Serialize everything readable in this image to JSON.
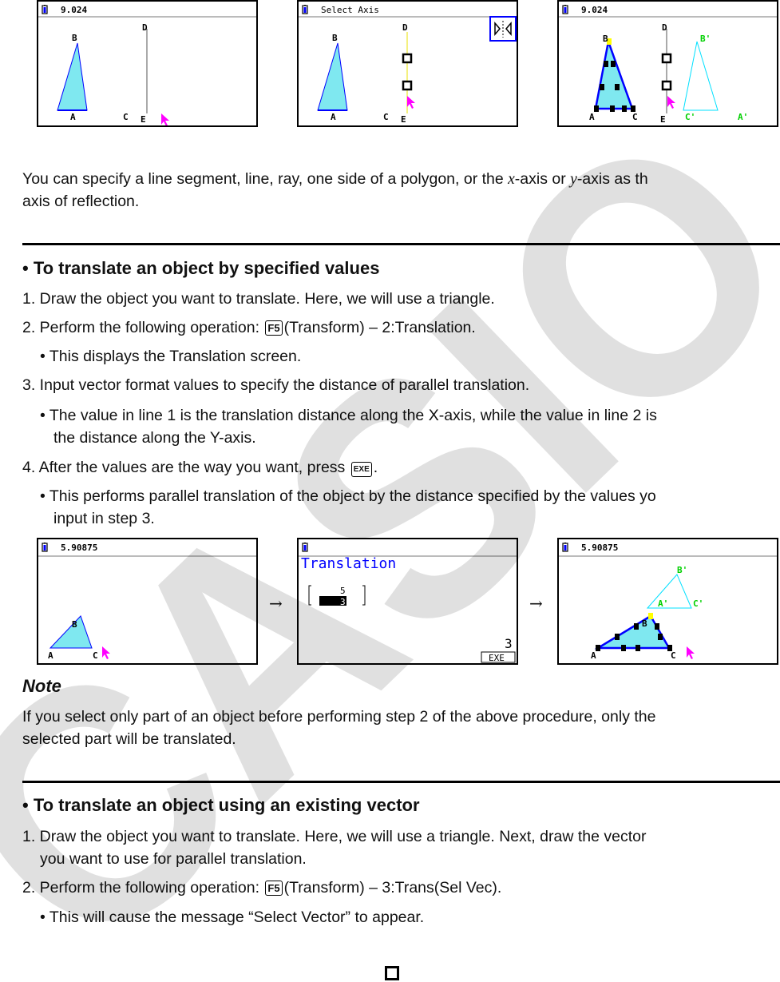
{
  "top_screens": [
    {
      "title": "9.024",
      "labels": {
        "A": "A",
        "B": "B",
        "C": "C",
        "D": "D",
        "E": "E"
      }
    },
    {
      "title": "Select Axis",
      "labels": {
        "A": "A",
        "B": "B",
        "C": "C",
        "D": "D",
        "E": "E"
      }
    },
    {
      "title": "9.024",
      "labels": {
        "A": "A",
        "B": "B",
        "C": "C",
        "D": "D",
        "E": "E",
        "A2": "A'",
        "B2": "B'",
        "C2": "C'"
      }
    }
  ],
  "para1": [
    "You can specify a line segment, line, ray, one side of a polygon, or the ",
    "x",
    "-axis or ",
    "y",
    "-axis as th"
  ],
  "para1_line2": "axis of reflection.",
  "section1": {
    "heading": "• To translate an object by specified values",
    "lines": [
      "1. Draw the object you want to translate. Here, we will use a triangle.",
      "2. Perform the following operation: ",
      "(Transform) – 2:Translation.",
      "• This displays the Translation screen.",
      "3. Input vector format values to specify the distance of parallel translation.",
      "• The value in line 1 is the translation distance along the X-axis, while the value in line 2 is",
      "the distance along the Y-axis.",
      "4. After the values are the way you want, press ",
      ".",
      "• This performs parallel translation of the object by the distance specified by the values yo",
      "input in step 3."
    ],
    "keys": {
      "f5": "F5",
      "exe": "EXE"
    }
  },
  "bottom_screens": [
    {
      "title": "5.90875",
      "labels": {
        "A": "A",
        "B": "B",
        "C": "C"
      }
    },
    {
      "title": "Translation",
      "vector": [
        "5",
        "3"
      ],
      "entry": "3",
      "exe": "EXE"
    },
    {
      "title": "5.90875",
      "labels": {
        "A": "A",
        "B": "B",
        "C": "C",
        "A2": "A'",
        "B2": "B'",
        "C2": "C'"
      }
    }
  ],
  "arrow": "→",
  "note": {
    "heading": "Note",
    "lines": [
      "If you select only part of an object before performing step 2 of the above procedure, only the",
      "selected part will be translated."
    ]
  },
  "section2": {
    "heading": "• To translate an object using an existing vector",
    "lines": [
      "1. Draw the object you want to translate. Here, we will use a triangle. Next, draw the vector",
      "you want to use for parallel translation.",
      "2. Perform the following operation: ",
      "(Transform) – 3:Trans(Sel Vec).",
      "• This will cause the message “Select Vector” to appear."
    ],
    "keys": {
      "f5": "F5"
    }
  },
  "watermark": "CASIO",
  "colors": {
    "fill": "#7fe8f0",
    "edge": "#0000ff",
    "reflect": "#00e0ff",
    "label_prime": "#00d000",
    "cursor": "#ff00ff",
    "title_blue": "#0000ff"
  }
}
